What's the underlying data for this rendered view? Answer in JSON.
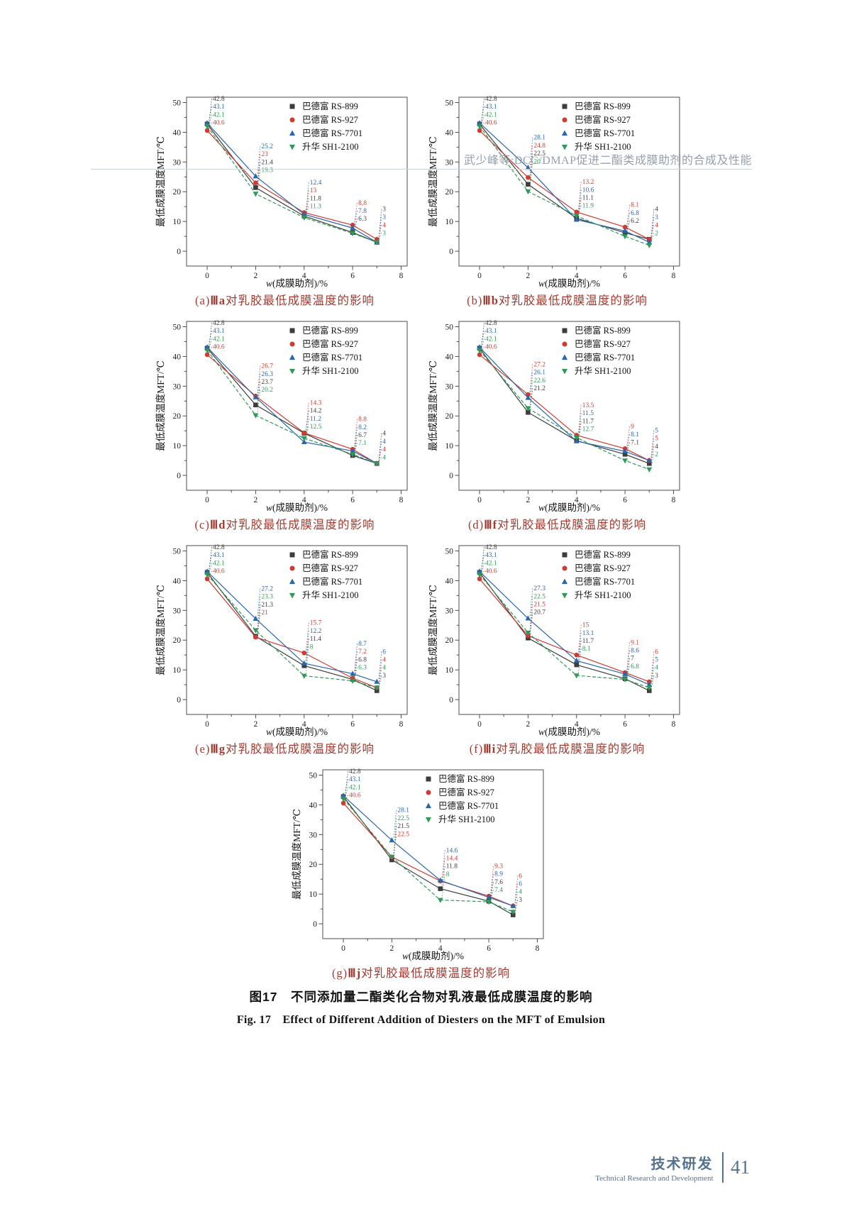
{
  "page": {
    "header": "武少峰等:DCC/DMAP促进二酯类成膜助剂的合成及性能",
    "figure_caption_zh": "图17　不同添加量二酯类化合物对乳液最低成膜温度的影响",
    "figure_caption_en": "Fig. 17　Effect of Different Addition of Diesters on the MFT of Emulsion",
    "footer": {
      "zh": "技术研发",
      "en": "Technical Research and Development",
      "page_number": "41"
    }
  },
  "axes": {
    "ylabel": "最低成膜温度MFT/℃",
    "xlabel_italic": "w",
    "xlabel_rest": "(成膜助剂)/%",
    "yticks": [
      0,
      10,
      20,
      30,
      40,
      50
    ],
    "xticks": [
      0,
      2,
      4,
      6,
      8
    ],
    "ylim": [
      0,
      50
    ],
    "xlim": [
      0,
      8
    ],
    "grid": false,
    "legend_position": "top-right"
  },
  "series_meta": [
    {
      "name": "巴德富 RS-899",
      "color": "#3d3d3d",
      "marker": "square"
    },
    {
      "name": "巴德富 RS-927",
      "color": "#cf3a31",
      "marker": "circle"
    },
    {
      "name": "巴德富 RS-7701",
      "color": "#2a66ae",
      "marker": "triangle-up"
    },
    {
      "name": "升华 SH1-2100",
      "color": "#2e9a57",
      "marker": "triangle-down"
    }
  ],
  "chart_data": [
    {
      "id": "a",
      "type": "line",
      "caption": {
        "pre": "(a)",
        "compound": "Ⅲa",
        "rest": "对乳胶最低成膜温度的影响"
      },
      "x": [
        0,
        2,
        4,
        6,
        7
      ],
      "series": [
        {
          "name": "巴德富 RS-899",
          "values": [
            42.8,
            21.4,
            11.8,
            6.3,
            3
          ]
        },
        {
          "name": "巴德富 RS-927",
          "values": [
            40.6,
            23.0,
            13.0,
            8.8,
            4
          ]
        },
        {
          "name": "巴德富 RS-7701",
          "values": [
            43.1,
            25.2,
            12.4,
            7.8,
            3
          ]
        },
        {
          "name": "升华 SH1-2100",
          "values": [
            42.1,
            19.3,
            11.3,
            6.0,
            3
          ]
        }
      ],
      "annotations": {
        "0": [
          [
            0,
            "42.8"
          ],
          [
            2,
            "43.1"
          ],
          [
            3,
            "42.1"
          ],
          [
            1,
            "40.6"
          ]
        ],
        "2": [
          [
            2,
            "25.2"
          ],
          [
            1,
            "23"
          ],
          [
            0,
            "21.4"
          ],
          [
            3,
            "19.3"
          ]
        ],
        "4": [
          [
            2,
            "12.4"
          ],
          [
            1,
            "13"
          ],
          [
            0,
            "11.8"
          ],
          [
            3,
            "11.3"
          ]
        ],
        "6": [
          [
            1,
            "8.8"
          ],
          [
            2,
            "7.8"
          ],
          [
            0,
            "6.3"
          ]
        ],
        "7": [
          [
            0,
            "3"
          ],
          [
            2,
            "3"
          ],
          [
            1,
            "4"
          ],
          [
            3,
            "3"
          ]
        ]
      }
    },
    {
      "id": "b",
      "type": "line",
      "caption": {
        "pre": "(b)",
        "compound": "Ⅲb",
        "rest": "对乳胶最低成膜温度的影响"
      },
      "x": [
        0,
        2,
        4,
        6,
        7
      ],
      "series": [
        {
          "name": "巴德富 RS-899",
          "values": [
            42.8,
            22.5,
            11.1,
            6.2,
            4
          ]
        },
        {
          "name": "巴德富 RS-927",
          "values": [
            40.6,
            24.8,
            13.2,
            8.1,
            4
          ]
        },
        {
          "name": "巴德富 RS-7701",
          "values": [
            43.1,
            28.1,
            10.6,
            6.8,
            3
          ]
        },
        {
          "name": "升华 SH1-2100",
          "values": [
            42.1,
            20.1,
            11.9,
            5.0,
            2
          ]
        }
      ],
      "annotations": {
        "0": [
          [
            0,
            "42.8"
          ],
          [
            2,
            "43.1"
          ],
          [
            3,
            "42.1"
          ],
          [
            1,
            "40.6"
          ]
        ],
        "2": [
          [
            2,
            "28.1"
          ],
          [
            1,
            "24.8"
          ],
          [
            0,
            "22.5"
          ],
          [
            3,
            "20.1"
          ]
        ],
        "4": [
          [
            1,
            "13.2"
          ],
          [
            2,
            "10.6"
          ],
          [
            0,
            "11.1"
          ],
          [
            3,
            "11.9"
          ]
        ],
        "6": [
          [
            1,
            "8.1"
          ],
          [
            2,
            "6.8"
          ],
          [
            0,
            "6.2"
          ]
        ],
        "7": [
          [
            0,
            "4"
          ],
          [
            2,
            "3"
          ],
          [
            1,
            "4"
          ],
          [
            3,
            "2"
          ]
        ]
      }
    },
    {
      "id": "c",
      "type": "line",
      "caption": {
        "pre": "(c)",
        "compound": "Ⅲd",
        "rest": "对乳胶最低成膜温度的影响"
      },
      "x": [
        0,
        2,
        4,
        6,
        7
      ],
      "series": [
        {
          "name": "巴德富 RS-899",
          "values": [
            42.8,
            23.7,
            14.2,
            6.7,
            4
          ]
        },
        {
          "name": "巴德富 RS-927",
          "values": [
            40.6,
            26.7,
            14.3,
            8.8,
            4
          ]
        },
        {
          "name": "巴德富 RS-7701",
          "values": [
            43.1,
            26.3,
            11.2,
            8.2,
            4
          ]
        },
        {
          "name": "升华 SH1-2100",
          "values": [
            42.1,
            20.2,
            12.5,
            7.1,
            4
          ]
        }
      ],
      "annotations": {
        "0": [
          [
            0,
            "42.8"
          ],
          [
            2,
            "43.1"
          ],
          [
            3,
            "42.1"
          ],
          [
            1,
            "40.6"
          ]
        ],
        "2": [
          [
            1,
            "26.7"
          ],
          [
            2,
            "26.3"
          ],
          [
            0,
            "23.7"
          ],
          [
            3,
            "20.2"
          ]
        ],
        "4": [
          [
            1,
            "14.3"
          ],
          [
            0,
            "14.2"
          ],
          [
            2,
            "11.2"
          ],
          [
            3,
            "12.5"
          ]
        ],
        "6": [
          [
            1,
            "8.8"
          ],
          [
            2,
            "8.2"
          ],
          [
            0,
            "6.7"
          ],
          [
            3,
            "7.1"
          ]
        ],
        "7": [
          [
            0,
            "4"
          ],
          [
            2,
            "4"
          ],
          [
            1,
            "4"
          ],
          [
            3,
            "4"
          ]
        ]
      }
    },
    {
      "id": "d",
      "type": "line",
      "caption": {
        "pre": "(d)",
        "compound": "Ⅲf",
        "rest": "对乳胶最低成膜温度的影响"
      },
      "x": [
        0,
        2,
        4,
        6,
        7
      ],
      "series": [
        {
          "name": "巴德富 RS-899",
          "values": [
            42.8,
            21.2,
            11.7,
            7.1,
            4
          ]
        },
        {
          "name": "巴德富 RS-927",
          "values": [
            40.6,
            27.2,
            13.5,
            9.0,
            5
          ]
        },
        {
          "name": "巴德富 RS-7701",
          "values": [
            43.1,
            26.1,
            11.5,
            8.1,
            5
          ]
        },
        {
          "name": "升华 SH1-2100",
          "values": [
            42.1,
            22.6,
            12.7,
            5.0,
            2
          ]
        }
      ],
      "annotations": {
        "0": [
          [
            0,
            "42.8"
          ],
          [
            2,
            "43.1"
          ],
          [
            3,
            "42.1"
          ],
          [
            1,
            "40.6"
          ]
        ],
        "2": [
          [
            1,
            "27.2"
          ],
          [
            2,
            "26.1"
          ],
          [
            3,
            "22.6"
          ],
          [
            0,
            "21.2"
          ]
        ],
        "4": [
          [
            1,
            "13.5"
          ],
          [
            2,
            "11.5"
          ],
          [
            0,
            "11.7"
          ],
          [
            3,
            "12.7"
          ]
        ],
        "6": [
          [
            1,
            "9"
          ],
          [
            2,
            "8.1"
          ],
          [
            0,
            "7.1"
          ]
        ],
        "7": [
          [
            2,
            "5"
          ],
          [
            1,
            "5"
          ],
          [
            0,
            "4"
          ],
          [
            3,
            "2"
          ]
        ]
      }
    },
    {
      "id": "e",
      "type": "line",
      "caption": {
        "pre": "(e)",
        "compound": "Ⅲg",
        "rest": "对乳胶最低成膜温度的影响"
      },
      "x": [
        0,
        2,
        4,
        6,
        7
      ],
      "series": [
        {
          "name": "巴德富 RS-899",
          "values": [
            42.8,
            21.3,
            11.4,
            6.8,
            3
          ]
        },
        {
          "name": "巴德富 RS-927",
          "values": [
            40.6,
            21.0,
            15.7,
            7.2,
            4
          ]
        },
        {
          "name": "巴德富 RS-7701",
          "values": [
            43.1,
            27.2,
            12.2,
            8.7,
            6
          ]
        },
        {
          "name": "升华 SH1-2100",
          "values": [
            42.1,
            23.3,
            8.0,
            6.3,
            4
          ]
        }
      ],
      "annotations": {
        "0": [
          [
            0,
            "42.8"
          ],
          [
            2,
            "43.1"
          ],
          [
            3,
            "42.1"
          ],
          [
            1,
            "40.6"
          ]
        ],
        "2": [
          [
            2,
            "27.2"
          ],
          [
            3,
            "23.3"
          ],
          [
            0,
            "21.3"
          ],
          [
            1,
            "21"
          ]
        ],
        "4": [
          [
            1,
            "15.7"
          ],
          [
            2,
            "12.2"
          ],
          [
            0,
            "11.4"
          ],
          [
            3,
            "8"
          ]
        ],
        "6": [
          [
            2,
            "8.7"
          ],
          [
            1,
            "7.2"
          ],
          [
            0,
            "6.8"
          ],
          [
            3,
            "6.3"
          ]
        ],
        "7": [
          [
            2,
            "6"
          ],
          [
            1,
            "4"
          ],
          [
            3,
            "4"
          ],
          [
            0,
            "3"
          ]
        ]
      }
    },
    {
      "id": "f",
      "type": "line",
      "caption": {
        "pre": "(f)",
        "compound": "Ⅲi",
        "rest": "对乳胶最低成膜温度的影响"
      },
      "x": [
        0,
        2,
        4,
        6,
        7
      ],
      "series": [
        {
          "name": "巴德富 RS-899",
          "values": [
            42.8,
            20.7,
            11.7,
            7.0,
            3
          ]
        },
        {
          "name": "巴德富 RS-927",
          "values": [
            40.6,
            21.5,
            15.0,
            9.1,
            6
          ]
        },
        {
          "name": "巴德富 RS-7701",
          "values": [
            43.1,
            27.3,
            13.1,
            8.6,
            5
          ]
        },
        {
          "name": "升华 SH1-2100",
          "values": [
            42.1,
            22.5,
            8.1,
            6.8,
            4
          ]
        }
      ],
      "annotations": {
        "0": [
          [
            0,
            "42.8"
          ],
          [
            2,
            "43.1"
          ],
          [
            3,
            "42.1"
          ],
          [
            1,
            "40.6"
          ]
        ],
        "2": [
          [
            2,
            "27.3"
          ],
          [
            3,
            "22.5"
          ],
          [
            1,
            "21.5"
          ],
          [
            0,
            "20.7"
          ]
        ],
        "4": [
          [
            1,
            "15"
          ],
          [
            2,
            "13.1"
          ],
          [
            0,
            "11.7"
          ],
          [
            3,
            "8.1"
          ]
        ],
        "6": [
          [
            1,
            "9.1"
          ],
          [
            2,
            "8.6"
          ],
          [
            0,
            "7"
          ],
          [
            3,
            "6.8"
          ]
        ],
        "7": [
          [
            1,
            "6"
          ],
          [
            2,
            "5"
          ],
          [
            3,
            "4"
          ],
          [
            0,
            "3"
          ]
        ]
      }
    },
    {
      "id": "g",
      "type": "line",
      "caption": {
        "pre": "(g)",
        "compound": "Ⅲj",
        "rest": "对乳胶最低成膜温度的影响"
      },
      "x": [
        0,
        2,
        4,
        6,
        7
      ],
      "series": [
        {
          "name": "巴德富 RS-899",
          "values": [
            42.8,
            21.5,
            11.8,
            7.6,
            3
          ]
        },
        {
          "name": "巴德富 RS-927",
          "values": [
            40.6,
            22.5,
            14.4,
            9.3,
            6
          ]
        },
        {
          "name": "巴德富 RS-7701",
          "values": [
            43.1,
            28.1,
            14.6,
            8.9,
            6
          ]
        },
        {
          "name": "升华 SH1-2100",
          "values": [
            42.1,
            22.5,
            8.0,
            7.4,
            4
          ]
        }
      ],
      "annotations": {
        "0": [
          [
            0,
            "42.8"
          ],
          [
            2,
            "43.1"
          ],
          [
            3,
            "42.1"
          ],
          [
            1,
            "40.6"
          ]
        ],
        "2": [
          [
            2,
            "28.1"
          ],
          [
            3,
            "22.5"
          ],
          [
            0,
            "21.5"
          ],
          [
            1,
            "22.5"
          ]
        ],
        "4": [
          [
            2,
            "14.6"
          ],
          [
            1,
            "14.4"
          ],
          [
            0,
            "11.8"
          ],
          [
            3,
            "8"
          ]
        ],
        "6": [
          [
            1,
            "9.3"
          ],
          [
            2,
            "8.9"
          ],
          [
            0,
            "7.6"
          ],
          [
            3,
            "7.4"
          ]
        ],
        "7": [
          [
            1,
            "6"
          ],
          [
            2,
            "6"
          ],
          [
            3,
            "4"
          ],
          [
            0,
            "3"
          ]
        ]
      }
    }
  ]
}
